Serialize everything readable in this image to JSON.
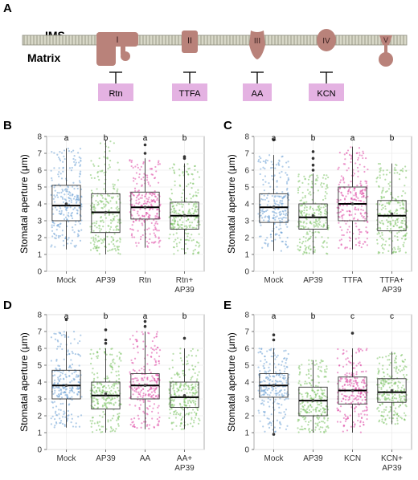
{
  "figure": {
    "panel_letters": [
      "A",
      "B",
      "C",
      "D",
      "E"
    ]
  },
  "diagram": {
    "ims_label": "IMS",
    "matrix_label": "Matrix",
    "complexes": [
      "I",
      "II",
      "III",
      "IV",
      "V"
    ],
    "inhibitors": [
      "Rtn",
      "TTFA",
      "AA",
      "KCN"
    ],
    "colors": {
      "membrane": "#b8b8b0",
      "complex": "#b9827a",
      "inhibitor_box": "#e4b2e2"
    }
  },
  "chart_data": [
    {
      "panel": "B",
      "type": "box",
      "ylabel": "Stomatal aperture (μm)",
      "ylim": [
        0,
        8
      ],
      "yticks": [
        0,
        1,
        2,
        3,
        4,
        5,
        6,
        7,
        8
      ],
      "grid": true,
      "categories": [
        "Mock",
        "AP39",
        "Rtn",
        "Rtn+\nAP39"
      ],
      "colors": [
        "#6fa3d6",
        "#7cc364",
        "#de4ba6",
        "#7cc364"
      ],
      "letters": [
        "a",
        "b",
        "a",
        "b"
      ],
      "boxes": [
        {
          "min": 1.3,
          "q1": 3.0,
          "median": 3.9,
          "q3": 5.1,
          "max": 7.3,
          "mean": 4.0,
          "outliers": []
        },
        {
          "min": 1.0,
          "q1": 2.3,
          "median": 3.5,
          "q3": 4.6,
          "max": 7.8,
          "mean": 3.5,
          "outliers": []
        },
        {
          "min": 1.4,
          "q1": 3.1,
          "median": 3.8,
          "q3": 4.7,
          "max": 6.7,
          "mean": 3.8,
          "outliers": [
            7.0,
            7.5
          ]
        },
        {
          "min": 1.0,
          "q1": 2.5,
          "median": 3.3,
          "q3": 4.1,
          "max": 6.4,
          "mean": 3.3,
          "outliers": [
            6.7,
            6.8
          ]
        }
      ]
    },
    {
      "panel": "C",
      "type": "box",
      "ylabel": "Stomatal aperture (μm)",
      "ylim": [
        0,
        8
      ],
      "yticks": [
        0,
        1,
        2,
        3,
        4,
        5,
        6,
        7,
        8
      ],
      "grid": true,
      "categories": [
        "Mock",
        "AP39",
        "TTFA",
        "TTFA+\nAP39"
      ],
      "colors": [
        "#6fa3d6",
        "#7cc364",
        "#de4ba6",
        "#7cc364"
      ],
      "letters": [
        "a",
        "b",
        "a",
        "b"
      ],
      "boxes": [
        {
          "min": 1.2,
          "q1": 2.9,
          "median": 3.8,
          "q3": 4.6,
          "max": 6.9,
          "mean": 3.8,
          "outliers": [
            7.8
          ]
        },
        {
          "min": 1.0,
          "q1": 2.5,
          "median": 3.2,
          "q3": 4.0,
          "max": 5.8,
          "mean": 3.3,
          "outliers": [
            6.0,
            6.3,
            6.7,
            7.1
          ]
        },
        {
          "min": 1.3,
          "q1": 3.0,
          "median": 4.0,
          "q3": 5.0,
          "max": 7.4,
          "mean": 4.0,
          "outliers": []
        },
        {
          "min": 1.0,
          "q1": 2.4,
          "median": 3.3,
          "q3": 4.2,
          "max": 6.4,
          "mean": 3.4,
          "outliers": []
        }
      ]
    },
    {
      "panel": "D",
      "type": "box",
      "ylabel": "Stomatal aperture (μm)",
      "ylim": [
        0,
        8
      ],
      "yticks": [
        0,
        1,
        2,
        3,
        4,
        5,
        6,
        7,
        8
      ],
      "grid": true,
      "categories": [
        "Mock",
        "AP39",
        "AA",
        "AA+\nAP39"
      ],
      "colors": [
        "#6fa3d6",
        "#7cc364",
        "#de4ba6",
        "#7cc364"
      ],
      "letters": [
        "a",
        "b",
        "a",
        "b"
      ],
      "boxes": [
        {
          "min": 1.3,
          "q1": 3.0,
          "median": 3.8,
          "q3": 4.7,
          "max": 7.0,
          "mean": 3.8,
          "outliers": [
            7.7
          ]
        },
        {
          "min": 1.0,
          "q1": 2.4,
          "median": 3.2,
          "q3": 4.0,
          "max": 6.0,
          "mean": 3.3,
          "outliers": [
            6.3,
            6.5,
            7.1
          ]
        },
        {
          "min": 1.2,
          "q1": 3.0,
          "median": 3.8,
          "q3": 4.5,
          "max": 7.0,
          "mean": 3.8,
          "outliers": [
            7.3,
            7.6
          ]
        },
        {
          "min": 1.2,
          "q1": 2.5,
          "median": 3.1,
          "q3": 4.0,
          "max": 6.0,
          "mean": 3.2,
          "outliers": [
            6.6
          ]
        }
      ]
    },
    {
      "panel": "E",
      "type": "box",
      "ylabel": "Stomatal aperture (μm)",
      "ylim": [
        0,
        8
      ],
      "yticks": [
        0,
        1,
        2,
        3,
        4,
        5,
        6,
        7,
        8
      ],
      "grid": true,
      "categories": [
        "Mock",
        "AP39",
        "KCN",
        "KCN+\nAP39"
      ],
      "colors": [
        "#6fa3d6",
        "#7cc364",
        "#de4ba6",
        "#7cc364"
      ],
      "letters": [
        "a",
        "b",
        "c",
        "c"
      ],
      "boxes": [
        {
          "min": 1.0,
          "q1": 3.1,
          "median": 3.8,
          "q3": 4.5,
          "max": 6.0,
          "mean": 3.8,
          "outliers": [
            0.9,
            6.5,
            6.8
          ]
        },
        {
          "min": 1.0,
          "q1": 2.0,
          "median": 2.9,
          "q3": 3.7,
          "max": 5.3,
          "mean": 2.9,
          "outliers": []
        },
        {
          "min": 1.0,
          "q1": 2.7,
          "median": 3.5,
          "q3": 4.3,
          "max": 6.0,
          "mean": 3.5,
          "outliers": [
            6.9
          ]
        },
        {
          "min": 1.5,
          "q1": 2.8,
          "median": 3.4,
          "q3": 4.2,
          "max": 5.8,
          "mean": 3.5,
          "outliers": []
        }
      ]
    }
  ]
}
